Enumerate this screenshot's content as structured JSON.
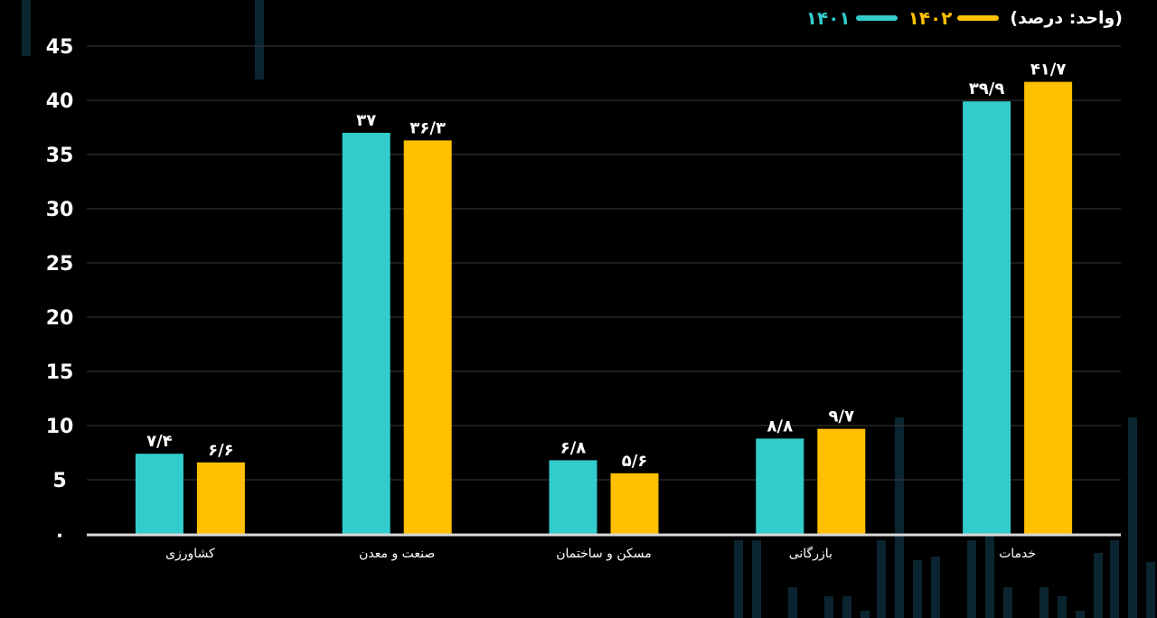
{
  "legend": {
    "unit_label": "(واحد: درصد)",
    "series1_label": "۱۴۰۱",
    "series2_label": "۱۴۰۲"
  },
  "colors": {
    "series1": "#33CCCC",
    "series2": "#FFC000",
    "background": "#000000",
    "grid": "#3a3a3a",
    "axis": "#d9d9d9"
  },
  "chart_data": {
    "type": "bar",
    "title": "",
    "xlabel": "",
    "ylabel": "",
    "ylim": [
      0,
      45
    ],
    "ytick_values": [
      0,
      5,
      10,
      15,
      20,
      25,
      30,
      35,
      40,
      45
    ],
    "ytick_labels": [
      "۰",
      "5",
      "10",
      "15",
      "20",
      "25",
      "30",
      "35",
      "40",
      "45"
    ],
    "grid": true,
    "legend_position": "top-right",
    "categories": [
      "کشاورزی",
      "صنعت و معدن",
      "مسکن و ساختمان",
      "بازرگانی",
      "خدمات"
    ],
    "series": [
      {
        "name": "۱۴۰۱",
        "values": [
          7.4,
          37,
          6.8,
          8.8,
          39.9
        ],
        "labels": [
          "۷/۴",
          "۳۷",
          "۶/۸",
          "۸/۸",
          "۳۹/۹"
        ]
      },
      {
        "name": "۱۴۰۲",
        "values": [
          6.6,
          36.3,
          5.6,
          9.7,
          41.7
        ],
        "labels": [
          "۶/۶",
          "۳۶/۳",
          "۵/۶",
          "۹/۷",
          "۴۱/۷"
        ]
      }
    ]
  }
}
